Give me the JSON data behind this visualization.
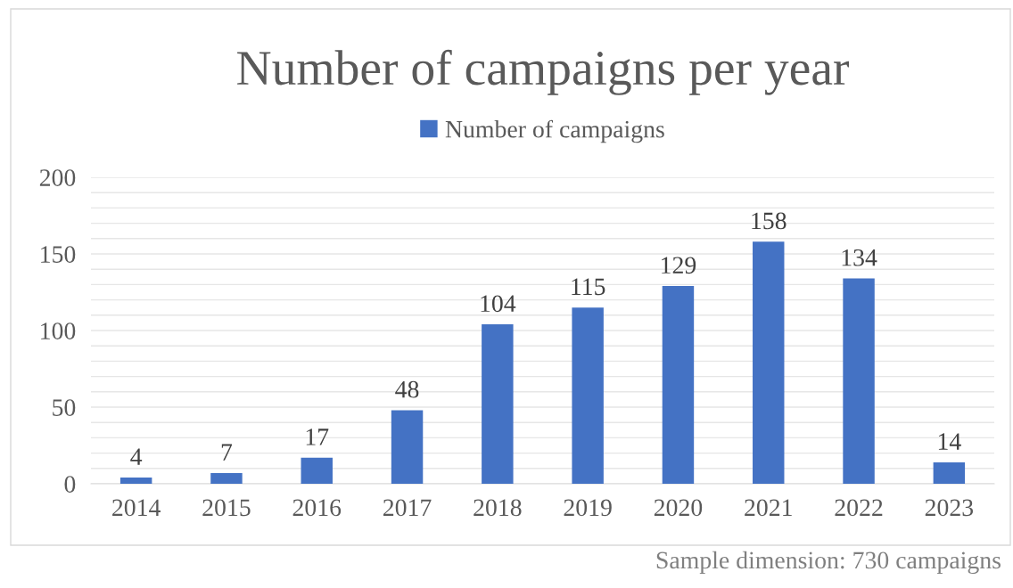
{
  "chart_data": {
    "type": "bar",
    "title": "Number of campaigns per year",
    "categories": [
      "2014",
      "2015",
      "2016",
      "2017",
      "2018",
      "2019",
      "2020",
      "2021",
      "2022",
      "2023"
    ],
    "series": [
      {
        "name": "Number of campaigns",
        "color": "#4472c4",
        "values": [
          4,
          7,
          17,
          48,
          104,
          115,
          129,
          158,
          134,
          14
        ]
      }
    ],
    "ylim": [
      0,
      200
    ],
    "yticks": [
      0,
      {
        "value": 10,
        "label": null
      },
      {
        "value": 20,
        "label": null
      },
      {
        "value": 30,
        "label": null
      },
      {
        "value": 40,
        "label": null
      },
      50,
      {
        "value": 60,
        "label": null
      },
      {
        "value": 70,
        "label": null
      },
      {
        "value": 80,
        "label": null
      },
      {
        "value": 90,
        "label": null
      },
      100,
      {
        "value": 110,
        "label": null
      },
      {
        "value": 120,
        "label": null
      },
      {
        "value": 130,
        "label": null
      },
      {
        "value": 140,
        "label": null
      },
      150,
      {
        "value": 160,
        "label": null
      },
      {
        "value": 170,
        "label": null
      },
      {
        "value": 180,
        "label": null
      },
      {
        "value": 190,
        "label": null
      },
      200
    ],
    "grid": "y",
    "legend": "top",
    "data_labels": true,
    "annotations": [
      "Sample dimension: 730 campaigns"
    ]
  }
}
